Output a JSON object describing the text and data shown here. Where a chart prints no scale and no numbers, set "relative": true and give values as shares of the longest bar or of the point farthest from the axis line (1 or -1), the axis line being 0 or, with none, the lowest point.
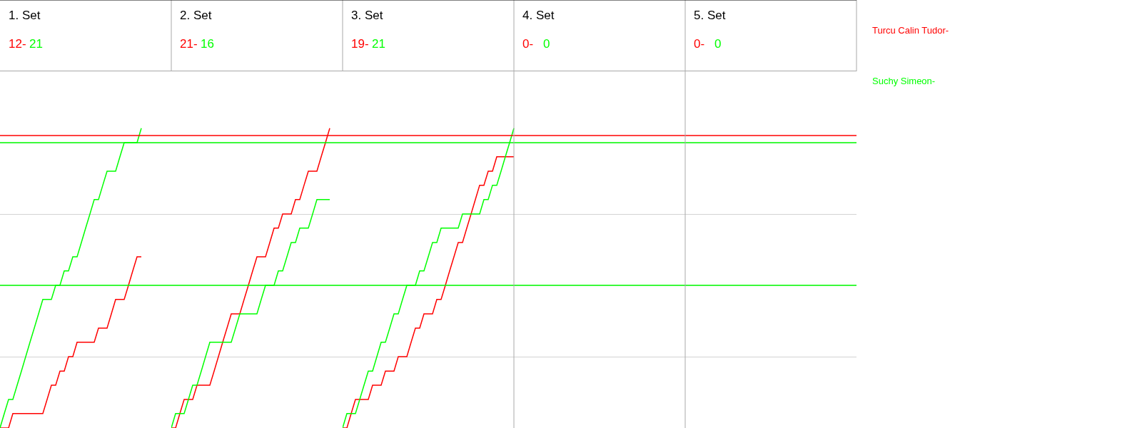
{
  "chart_data": [
    {
      "type": "line",
      "title": "1. Set",
      "annotations": [
        "12-",
        "21"
      ],
      "relative": true,
      "grid": "y",
      "categories": [
        null,
        null,
        null,
        null,
        null,
        null,
        null,
        null,
        null,
        null,
        null,
        null,
        null,
        null,
        null,
        null,
        null,
        null,
        null,
        null,
        null,
        null,
        null,
        null,
        null,
        null,
        null,
        null,
        null,
        null,
        null,
        null,
        null,
        null,
        null,
        null,
        null,
        null,
        null,
        null,
        null
      ],
      "series": [
        {
          "name": "Turcu Calin Tudor-",
          "color": "#ff0000",
          "values": [
            0,
            0,
            0,
            0.048,
            0.048,
            0.048,
            0.048,
            0.048,
            0.048,
            0.048,
            0.048,
            0.095,
            0.143,
            0.143,
            0.19,
            0.19,
            0.238,
            0.238,
            0.286,
            0.286,
            0.286,
            0.286,
            0.286,
            0.333,
            0.333,
            0.333,
            0.381,
            0.429,
            0.429,
            0.429,
            0.476,
            0.524,
            0.571,
            0.571,
            null,
            null,
            null,
            null,
            null,
            null,
            null
          ]
        },
        {
          "name": "Suchy Simeon-",
          "color": "#00ff00",
          "values": [
            0,
            0.048,
            0.095,
            0.095,
            0.143,
            0.19,
            0.238,
            0.286,
            0.333,
            0.381,
            0.429,
            0.429,
            0.429,
            0.476,
            0.476,
            0.524,
            0.524,
            0.571,
            0.571,
            0.619,
            0.667,
            0.714,
            0.762,
            0.762,
            0.81,
            0.857,
            0.857,
            0.857,
            0.905,
            0.952,
            0.952,
            0.952,
            0.952,
            1,
            null,
            null,
            null,
            null,
            null,
            null,
            null
          ]
        }
      ],
      "ref_lines": [
        {
          "axis": "y",
          "value": 0.976,
          "color": "#ff0000"
        },
        {
          "axis": "y",
          "value": 0.952,
          "color": "#00ff00"
        },
        {
          "axis": "y",
          "value": 0.476,
          "color": "#00ff00"
        }
      ]
    },
    {
      "type": "line",
      "title": "2. Set",
      "annotations": [
        "21-",
        "16"
      ],
      "relative": true,
      "grid": "y",
      "categories": [
        null,
        null,
        null,
        null,
        null,
        null,
        null,
        null,
        null,
        null,
        null,
        null,
        null,
        null,
        null,
        null,
        null,
        null,
        null,
        null,
        null,
        null,
        null,
        null,
        null,
        null,
        null,
        null,
        null,
        null,
        null,
        null,
        null,
        null,
        null,
        null,
        null,
        null,
        null,
        null,
        null
      ],
      "series": [
        {
          "color": "#ff0000",
          "values": [
            0,
            0,
            0.048,
            0.095,
            0.095,
            0.095,
            0.143,
            0.143,
            0.143,
            0.143,
            0.19,
            0.238,
            0.286,
            0.333,
            0.381,
            0.381,
            0.381,
            0.429,
            0.476,
            0.524,
            0.571,
            0.571,
            0.571,
            0.619,
            0.667,
            0.667,
            0.714,
            0.714,
            0.714,
            0.762,
            0.762,
            0.81,
            0.857,
            0.857,
            0.857,
            0.905,
            0.952,
            1,
            null,
            null,
            null
          ]
        },
        {
          "color": "#00ff00",
          "values": [
            0,
            0.048,
            0.048,
            0.048,
            0.095,
            0.143,
            0.143,
            0.19,
            0.238,
            0.286,
            0.286,
            0.286,
            0.286,
            0.286,
            0.286,
            0.333,
            0.381,
            0.381,
            0.381,
            0.381,
            0.381,
            0.429,
            0.476,
            0.476,
            0.476,
            0.524,
            0.524,
            0.571,
            0.619,
            0.619,
            0.667,
            0.667,
            0.667,
            0.714,
            0.762,
            0.762,
            0.762,
            0.762,
            null,
            null,
            null
          ]
        }
      ],
      "ref_lines": [
        {
          "axis": "y",
          "value": 0.976,
          "color": "#ff0000"
        },
        {
          "axis": "y",
          "value": 0.952,
          "color": "#00ff00"
        },
        {
          "axis": "y",
          "value": 0.476,
          "color": "#00ff00"
        }
      ]
    },
    {
      "type": "line",
      "title": "3. Set",
      "annotations": [
        "19-",
        "21",
        "4. Set",
        "0-",
        "0",
        "5. Set",
        "0-",
        "0"
      ],
      "relative": true,
      "grid": "y",
      "categories": [
        null,
        null,
        null,
        null,
        null,
        null,
        null,
        null,
        null,
        null,
        null,
        null,
        null,
        null,
        null,
        null,
        null,
        null,
        null,
        null,
        null,
        null,
        null,
        null,
        null,
        null,
        null,
        null,
        null,
        null,
        null,
        null,
        null,
        null,
        null,
        null,
        null,
        null,
        null,
        null,
        null,
        null,
        null,
        null,
        null,
        null,
        null,
        null,
        null,
        null,
        null,
        null,
        null,
        null,
        null,
        null,
        null,
        null,
        null,
        null,
        null,
        null,
        null,
        null,
        null,
        null,
        null,
        null,
        null,
        null,
        null,
        null,
        null,
        null,
        null,
        null,
        null,
        null,
        null,
        null,
        null,
        null,
        null,
        null,
        null,
        null,
        null,
        null,
        null,
        null,
        null,
        null,
        null,
        null,
        null,
        null,
        null,
        null,
        null,
        null,
        null,
        null,
        null,
        null,
        null,
        null,
        null,
        null,
        null,
        null,
        null,
        null,
        null,
        null,
        null,
        null,
        null,
        null,
        null,
        null,
        null
      ],
      "series": [
        {
          "color": "#ff0000",
          "values": [
            0,
            0,
            0.048,
            0.095,
            0.095,
            0.095,
            0.095,
            0.143,
            0.143,
            0.143,
            0.19,
            0.19,
            0.19,
            0.238,
            0.238,
            0.238,
            0.286,
            0.333,
            0.333,
            0.381,
            0.381,
            0.381,
            0.429,
            0.429,
            0.476,
            0.524,
            0.571,
            0.619,
            0.619,
            0.667,
            0.714,
            0.762,
            0.81,
            0.81,
            0.857,
            0.857,
            0.905,
            0.905,
            0.905,
            0.905,
            0.905,
            null,
            null,
            null,
            null,
            null,
            null,
            null,
            null,
            null,
            null,
            null,
            null,
            null,
            null,
            null,
            null,
            null,
            null,
            null,
            null,
            null,
            null,
            null,
            null,
            null,
            null,
            null,
            null,
            null,
            null,
            null,
            null,
            null,
            null,
            null,
            null,
            null,
            null,
            null,
            null,
            null,
            null,
            null,
            null,
            null,
            null,
            null,
            null,
            null,
            null,
            null,
            null,
            null,
            null,
            null,
            null,
            null,
            null,
            null,
            null,
            null,
            null,
            null,
            null,
            null,
            null,
            null,
            null,
            null,
            null,
            null,
            null,
            null,
            null,
            null,
            null,
            null,
            null,
            null,
            null
          ]
        },
        {
          "color": "#00ff00",
          "values": [
            0,
            0.048,
            0.048,
            0.048,
            0.095,
            0.143,
            0.19,
            0.19,
            0.238,
            0.286,
            0.286,
            0.333,
            0.381,
            0.381,
            0.429,
            0.476,
            0.476,
            0.476,
            0.524,
            0.524,
            0.571,
            0.619,
            0.619,
            0.667,
            0.667,
            0.667,
            0.667,
            0.667,
            0.714,
            0.714,
            0.714,
            0.714,
            0.714,
            0.762,
            0.762,
            0.81,
            0.81,
            0.857,
            0.905,
            0.952,
            1,
            null,
            null,
            null,
            null,
            null,
            null,
            null,
            null,
            null,
            null,
            null,
            null,
            null,
            null,
            null,
            null,
            null,
            null,
            null,
            null,
            null,
            null,
            null,
            null,
            null,
            null,
            null,
            null,
            null,
            null,
            null,
            null,
            null,
            null,
            null,
            null,
            null,
            null,
            null,
            null,
            null,
            null,
            null,
            null,
            null,
            null,
            null,
            null,
            null,
            null,
            null,
            null,
            null,
            null,
            null,
            null,
            null,
            null,
            null,
            null,
            null,
            null,
            null,
            null,
            null,
            null,
            null,
            null,
            null,
            null,
            null,
            null,
            null,
            null,
            null,
            null,
            null,
            null,
            null,
            null
          ]
        }
      ],
      "ref_lines": [
        {
          "axis": "y",
          "value": 0.976,
          "color": "#ff0000"
        },
        {
          "axis": "y",
          "value": 0.952,
          "color": "#00ff00"
        },
        {
          "axis": "y",
          "value": 0.476,
          "color": "#00ff00"
        }
      ]
    }
  ]
}
